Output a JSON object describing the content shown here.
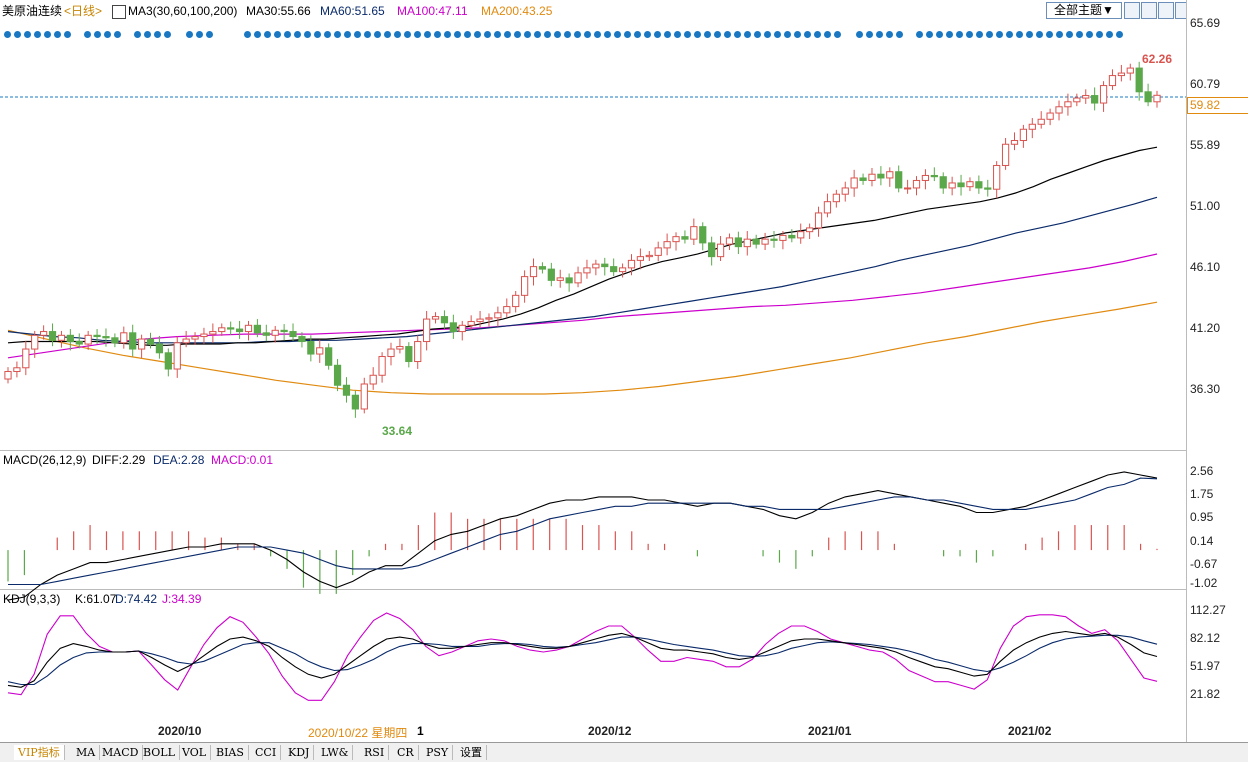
{
  "header": {
    "symbol": "美原油连续",
    "period": "<日线>",
    "ma_label": "MA3(30,60,100,200)",
    "ma30": "MA30:55.66",
    "ma60": "MA60:51.65",
    "ma100": "MA100:47.11",
    "ma200": "MA200:43.25",
    "theme_button": "全部主题▼"
  },
  "toolbar_icons": [
    "grid-icon",
    "window-icon",
    "chart-layout-icon",
    "close-icon"
  ],
  "colors": {
    "up": "#d9534f",
    "down": "#5aa84a",
    "ma30": "#000000",
    "ma60": "#0a2a6a",
    "ma100": "#cc00cc",
    "ma200": "#e08a10",
    "accent": "#1a78c2"
  },
  "main_axis": {
    "ticks": [
      "65.69",
      "60.79",
      "55.89",
      "51.00",
      "46.10",
      "41.20",
      "36.30"
    ],
    "last_price": "59.82"
  },
  "macd": {
    "label": "MACD(26,12,9)",
    "diff": "DIFF:2.29",
    "dea": "DEA:2.28",
    "macd": "MACD:0.01",
    "ticks": [
      "2.56",
      "1.75",
      "0.95",
      "0.14",
      "-0.67",
      "-1.02"
    ]
  },
  "kdj": {
    "label": "KDJ(9,3,3)",
    "k": "K:61.07",
    "d": "D:74.42",
    "j": "J:34.39",
    "ticks": [
      "112.27",
      "82.12",
      "51.97",
      "21.82"
    ]
  },
  "x_axis": {
    "labels": [
      "2020/10",
      "2020/12",
      "2021/01",
      "2021/02"
    ],
    "cursor_date": "2020/10/22 星期四",
    "cursor_value": "1"
  },
  "tabs": [
    "VIP指标",
    "MA",
    "MACD",
    "BOLL",
    "VOL",
    "BIAS",
    "CCI",
    "KDJ",
    "LW&",
    "RSI",
    "CR",
    "PSY",
    "设置"
  ],
  "chart_data": {
    "type": "candlestick",
    "high_label": "62.26",
    "low_label": "33.64",
    "ylim": [
      33,
      66
    ],
    "closes": [
      37.7,
      38.0,
      39.5,
      40.6,
      40.9,
      40.2,
      40.6,
      40.1,
      39.9,
      40.6,
      40.5,
      40.4,
      40.0,
      40.8,
      39.5,
      40.3,
      39.9,
      39.2,
      37.9,
      40.0,
      40.3,
      40.5,
      40.7,
      40.9,
      41.2,
      41.1,
      40.9,
      41.4,
      40.8,
      40.6,
      41.0,
      40.9,
      40.5,
      40.1,
      39.1,
      39.6,
      38.2,
      36.6,
      35.8,
      34.7,
      36.7,
      37.4,
      38.9,
      39.5,
      39.7,
      38.5,
      40.1,
      41.9,
      42.1,
      41.6,
      40.9,
      41.4,
      41.7,
      41.9,
      42.0,
      42.4,
      42.9,
      43.8,
      45.3,
      46.1,
      45.9,
      45.0,
      45.2,
      44.8,
      45.6,
      46.0,
      46.3,
      46.1,
      45.7,
      46.0,
      46.6,
      46.9,
      47.0,
      47.6,
      48.1,
      48.5,
      48.3,
      49.3,
      48.0,
      46.9,
      47.9,
      48.4,
      47.7,
      48.3,
      47.9,
      48.3,
      48.2,
      48.6,
      48.4,
      48.9,
      49.2,
      50.4,
      51.3,
      51.9,
      52.4,
      53.2,
      53.0,
      53.5,
      53.2,
      53.7,
      52.4,
      52.4,
      53.0,
      53.4,
      53.3,
      52.4,
      52.8,
      52.5,
      52.9,
      52.4,
      52.3,
      54.2,
      55.9,
      56.2,
      57.1,
      57.5,
      57.9,
      58.4,
      58.9,
      59.3,
      59.6,
      59.8,
      59.2,
      60.6,
      61.4,
      61.6,
      62.0,
      60.1,
      59.3,
      59.82
    ],
    "ma30": [
      40.0,
      40.1,
      40.1,
      40.1,
      40.1,
      40.1,
      40.0,
      39.9,
      39.8,
      39.8,
      39.9,
      39.9,
      39.9,
      40.0,
      40.0,
      40.1,
      40.2,
      40.3,
      40.3,
      40.4,
      40.5,
      40.6,
      40.7,
      40.9,
      41.1,
      41.2,
      41.3,
      41.6,
      41.9,
      42.3,
      42.8,
      43.4,
      43.9,
      44.5,
      45.1,
      45.6,
      46.1,
      46.5,
      46.8,
      47.1,
      47.5,
      47.9,
      48.2,
      48.5,
      48.8,
      49.0,
      49.2,
      49.4,
      49.6,
      49.8,
      50.1,
      50.4,
      50.7,
      50.9,
      51.1,
      51.3,
      51.6,
      52.0,
      52.5,
      53.1,
      53.6,
      54.1,
      54.6,
      55.0,
      55.4,
      55.66
    ],
    "ma60": [
      40.9,
      40.7,
      40.5,
      40.4,
      40.2,
      40.1,
      40.0,
      40.0,
      40.0,
      40.0,
      40.0,
      40.1,
      40.1,
      40.2,
      40.2,
      40.3,
      40.4,
      40.5,
      40.7,
      40.9,
      41.1,
      41.3,
      41.5,
      41.7,
      41.9,
      42.1,
      42.4,
      42.7,
      43.0,
      43.3,
      43.6,
      43.9,
      44.2,
      44.5,
      44.9,
      45.3,
      45.7,
      46.1,
      46.6,
      47.0,
      47.4,
      47.8,
      48.3,
      48.8,
      49.2,
      49.6,
      50.1,
      50.6,
      51.1,
      51.65
    ],
    "ma100": [
      38.8,
      39.2,
      39.6,
      40.0,
      40.3,
      40.5,
      40.6,
      40.7,
      40.7,
      40.7,
      40.8,
      40.9,
      41.0,
      41.1,
      41.2,
      41.4,
      41.6,
      41.8,
      42.1,
      42.3,
      42.5,
      42.7,
      42.9,
      43.0,
      43.2,
      43.4,
      43.7,
      44.0,
      44.4,
      44.8,
      45.2,
      45.6,
      46.0,
      46.5,
      47.11
    ],
    "ma200": [
      41.0,
      40.3,
      39.6,
      39.0,
      38.5,
      38.0,
      37.5,
      37.0,
      36.6,
      36.2,
      36.0,
      35.9,
      35.9,
      35.9,
      35.9,
      36.0,
      36.2,
      36.5,
      36.9,
      37.3,
      37.8,
      38.3,
      38.8,
      39.4,
      40.0,
      40.5,
      41.1,
      41.7,
      42.2,
      42.7,
      43.25
    ],
    "macd_diff": [
      -1.6,
      -1.5,
      -1.1,
      -0.8,
      -0.6,
      -0.4,
      -0.4,
      -0.3,
      -0.2,
      -0.1,
      0.0,
      0.1,
      0.1,
      0.2,
      0.2,
      0.2,
      0.0,
      -0.3,
      -0.7,
      -1.0,
      -1.2,
      -1.0,
      -0.7,
      -0.5,
      -0.5,
      -0.1,
      0.3,
      0.5,
      0.6,
      0.8,
      1.0,
      1.1,
      1.3,
      1.5,
      1.6,
      1.6,
      1.7,
      1.7,
      1.7,
      1.6,
      1.6,
      1.5,
      1.4,
      1.5,
      1.5,
      1.4,
      1.3,
      1.1,
      1.0,
      1.2,
      1.5,
      1.7,
      1.8,
      1.9,
      1.8,
      1.7,
      1.6,
      1.5,
      1.4,
      1.2,
      1.2,
      1.3,
      1.4,
      1.6,
      1.8,
      2.0,
      2.2,
      2.4,
      2.5,
      2.4,
      2.3
    ],
    "macd_dea": [
      -1.1,
      -1.1,
      -1.1,
      -1.0,
      -0.9,
      -0.8,
      -0.7,
      -0.6,
      -0.5,
      -0.4,
      -0.3,
      -0.2,
      -0.1,
      0.0,
      0.1,
      0.1,
      0.1,
      0.0,
      -0.1,
      -0.3,
      -0.5,
      -0.6,
      -0.6,
      -0.6,
      -0.6,
      -0.5,
      -0.3,
      -0.1,
      0.1,
      0.3,
      0.5,
      0.6,
      0.8,
      1.0,
      1.1,
      1.2,
      1.3,
      1.4,
      1.4,
      1.5,
      1.5,
      1.5,
      1.5,
      1.5,
      1.5,
      1.4,
      1.4,
      1.3,
      1.3,
      1.3,
      1.3,
      1.4,
      1.5,
      1.6,
      1.7,
      1.7,
      1.6,
      1.6,
      1.5,
      1.4,
      1.3,
      1.3,
      1.3,
      1.4,
      1.5,
      1.6,
      1.8,
      2.0,
      2.1,
      2.3,
      2.28
    ],
    "kdj_k": [
      30,
      28,
      35,
      55,
      70,
      75,
      72,
      68,
      66,
      66,
      67,
      60,
      52,
      45,
      52,
      62,
      72,
      80,
      82,
      78,
      72,
      60,
      50,
      42,
      38,
      42,
      52,
      62,
      72,
      80,
      82,
      80,
      74,
      70,
      70,
      72,
      74,
      76,
      76,
      74,
      72,
      70,
      70,
      72,
      76,
      80,
      84,
      86,
      82,
      76,
      70,
      68,
      68,
      66,
      64,
      60,
      58,
      60,
      66,
      72,
      78,
      80,
      80,
      78,
      76,
      74,
      72,
      70,
      66,
      60,
      55,
      50,
      48,
      44,
      40,
      42,
      56,
      68,
      76,
      82,
      86,
      88,
      86,
      84,
      86,
      82,
      74,
      65,
      61.07
    ],
    "kdj_d": [
      34,
      31,
      31,
      40,
      52,
      60,
      65,
      66,
      66,
      66,
      67,
      64,
      60,
      55,
      53,
      56,
      62,
      68,
      74,
      76,
      76,
      70,
      64,
      56,
      50,
      46,
      47,
      52,
      58,
      66,
      72,
      75,
      75,
      74,
      72,
      72,
      72,
      74,
      75,
      75,
      74,
      72,
      71,
      72,
      74,
      76,
      79,
      82,
      82,
      80,
      77,
      74,
      72,
      70,
      68,
      65,
      62,
      61,
      62,
      65,
      70,
      73,
      76,
      77,
      76,
      75,
      74,
      72,
      70,
      67,
      63,
      58,
      55,
      51,
      47,
      45,
      49,
      55,
      62,
      70,
      76,
      80,
      82,
      83,
      84,
      84,
      82,
      78,
      74.42
    ],
    "kdj_j": [
      22,
      20,
      42,
      85,
      105,
      105,
      86,
      72,
      66,
      66,
      67,
      52,
      36,
      25,
      50,
      74,
      92,
      104,
      98,
      82,
      64,
      40,
      22,
      14,
      14,
      34,
      62,
      82,
      100,
      108,
      102,
      90,
      72,
      62,
      66,
      72,
      78,
      80,
      78,
      72,
      68,
      66,
      68,
      72,
      80,
      88,
      94,
      94,
      82,
      68,
      56,
      56,
      60,
      58,
      56,
      50,
      50,
      58,
      74,
      86,
      94,
      94,
      88,
      80,
      76,
      72,
      68,
      66,
      58,
      46,
      40,
      34,
      34,
      30,
      26,
      36,
      70,
      94,
      104,
      106,
      106,
      104,
      94,
      86,
      90,
      78,
      58,
      38,
      34.39
    ]
  }
}
